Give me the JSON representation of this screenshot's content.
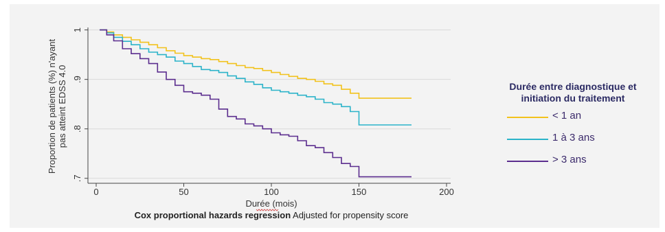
{
  "chart_data": {
    "type": "line",
    "xlabel": "Durée (mois)",
    "ylabel_line1": "Proportion de patients (%) n'ayant",
    "ylabel_line2": "pas atteint EDSS 4.0",
    "xlim": [
      0,
      200
    ],
    "ylim": [
      0.69,
      1.005
    ],
    "x_ticks": [
      0,
      50,
      100,
      150,
      200
    ],
    "x_tick_labels": [
      "0",
      "50",
      "100",
      "150",
      "200"
    ],
    "y_ticks": [
      0.7,
      0.8,
      0.9,
      1.0
    ],
    "y_tick_labels": [
      ".7",
      ".8",
      ".9",
      "1"
    ],
    "grid": true,
    "legend_position": "right",
    "series": [
      {
        "name": "< 1 an",
        "color": "#f2c21b",
        "points": [
          [
            2,
            1.0
          ],
          [
            6,
            0.996
          ],
          [
            10,
            0.99
          ],
          [
            15,
            0.985
          ],
          [
            20,
            0.98
          ],
          [
            25,
            0.975
          ],
          [
            30,
            0.97
          ],
          [
            35,
            0.964
          ],
          [
            40,
            0.958
          ],
          [
            45,
            0.953
          ],
          [
            50,
            0.948
          ],
          [
            55,
            0.945
          ],
          [
            60,
            0.942
          ],
          [
            65,
            0.94
          ],
          [
            70,
            0.936
          ],
          [
            75,
            0.932
          ],
          [
            80,
            0.928
          ],
          [
            85,
            0.924
          ],
          [
            90,
            0.922
          ],
          [
            95,
            0.918
          ],
          [
            100,
            0.914
          ],
          [
            105,
            0.91
          ],
          [
            110,
            0.906
          ],
          [
            115,
            0.902
          ],
          [
            120,
            0.9
          ],
          [
            125,
            0.896
          ],
          [
            130,
            0.891
          ],
          [
            135,
            0.888
          ],
          [
            140,
            0.88
          ],
          [
            145,
            0.872
          ],
          [
            150,
            0.862
          ],
          [
            180,
            0.862
          ]
        ]
      },
      {
        "name": "1 à 3 ans",
        "color": "#2bb3c9",
        "points": [
          [
            2,
            1.0
          ],
          [
            6,
            0.994
          ],
          [
            10,
            0.985
          ],
          [
            15,
            0.977
          ],
          [
            20,
            0.97
          ],
          [
            25,
            0.962
          ],
          [
            30,
            0.955
          ],
          [
            35,
            0.95
          ],
          [
            40,
            0.945
          ],
          [
            45,
            0.937
          ],
          [
            50,
            0.932
          ],
          [
            55,
            0.926
          ],
          [
            60,
            0.92
          ],
          [
            65,
            0.918
          ],
          [
            70,
            0.914
          ],
          [
            75,
            0.907
          ],
          [
            80,
            0.902
          ],
          [
            85,
            0.895
          ],
          [
            90,
            0.89
          ],
          [
            95,
            0.883
          ],
          [
            100,
            0.878
          ],
          [
            105,
            0.875
          ],
          [
            110,
            0.872
          ],
          [
            115,
            0.868
          ],
          [
            120,
            0.865
          ],
          [
            125,
            0.86
          ],
          [
            130,
            0.853
          ],
          [
            135,
            0.85
          ],
          [
            140,
            0.845
          ],
          [
            145,
            0.835
          ],
          [
            150,
            0.808
          ],
          [
            180,
            0.808
          ]
        ]
      },
      {
        "name": "> 3 ans",
        "color": "#5b2d8e",
        "points": [
          [
            2,
            1.0
          ],
          [
            6,
            0.99
          ],
          [
            10,
            0.978
          ],
          [
            15,
            0.962
          ],
          [
            20,
            0.952
          ],
          [
            25,
            0.942
          ],
          [
            30,
            0.932
          ],
          [
            35,
            0.915
          ],
          [
            40,
            0.9
          ],
          [
            45,
            0.888
          ],
          [
            50,
            0.875
          ],
          [
            55,
            0.872
          ],
          [
            60,
            0.868
          ],
          [
            65,
            0.86
          ],
          [
            70,
            0.84
          ],
          [
            75,
            0.825
          ],
          [
            80,
            0.82
          ],
          [
            85,
            0.81
          ],
          [
            90,
            0.806
          ],
          [
            95,
            0.8
          ],
          [
            100,
            0.792
          ],
          [
            105,
            0.788
          ],
          [
            110,
            0.785
          ],
          [
            115,
            0.776
          ],
          [
            120,
            0.766
          ],
          [
            125,
            0.762
          ],
          [
            130,
            0.752
          ],
          [
            135,
            0.742
          ],
          [
            140,
            0.73
          ],
          [
            145,
            0.724
          ],
          [
            150,
            0.703
          ],
          [
            180,
            0.703
          ]
        ]
      }
    ]
  },
  "legend": {
    "title_line1": "Durée entre diagnostique et",
    "title_line2": "initiation du traitement",
    "items": [
      "< 1 an",
      "1 à 3 ans",
      "> 3 ans"
    ]
  },
  "caption": {
    "bold": "Cox proportional hazards regression",
    "normal": " Adjusted for propensity score"
  }
}
